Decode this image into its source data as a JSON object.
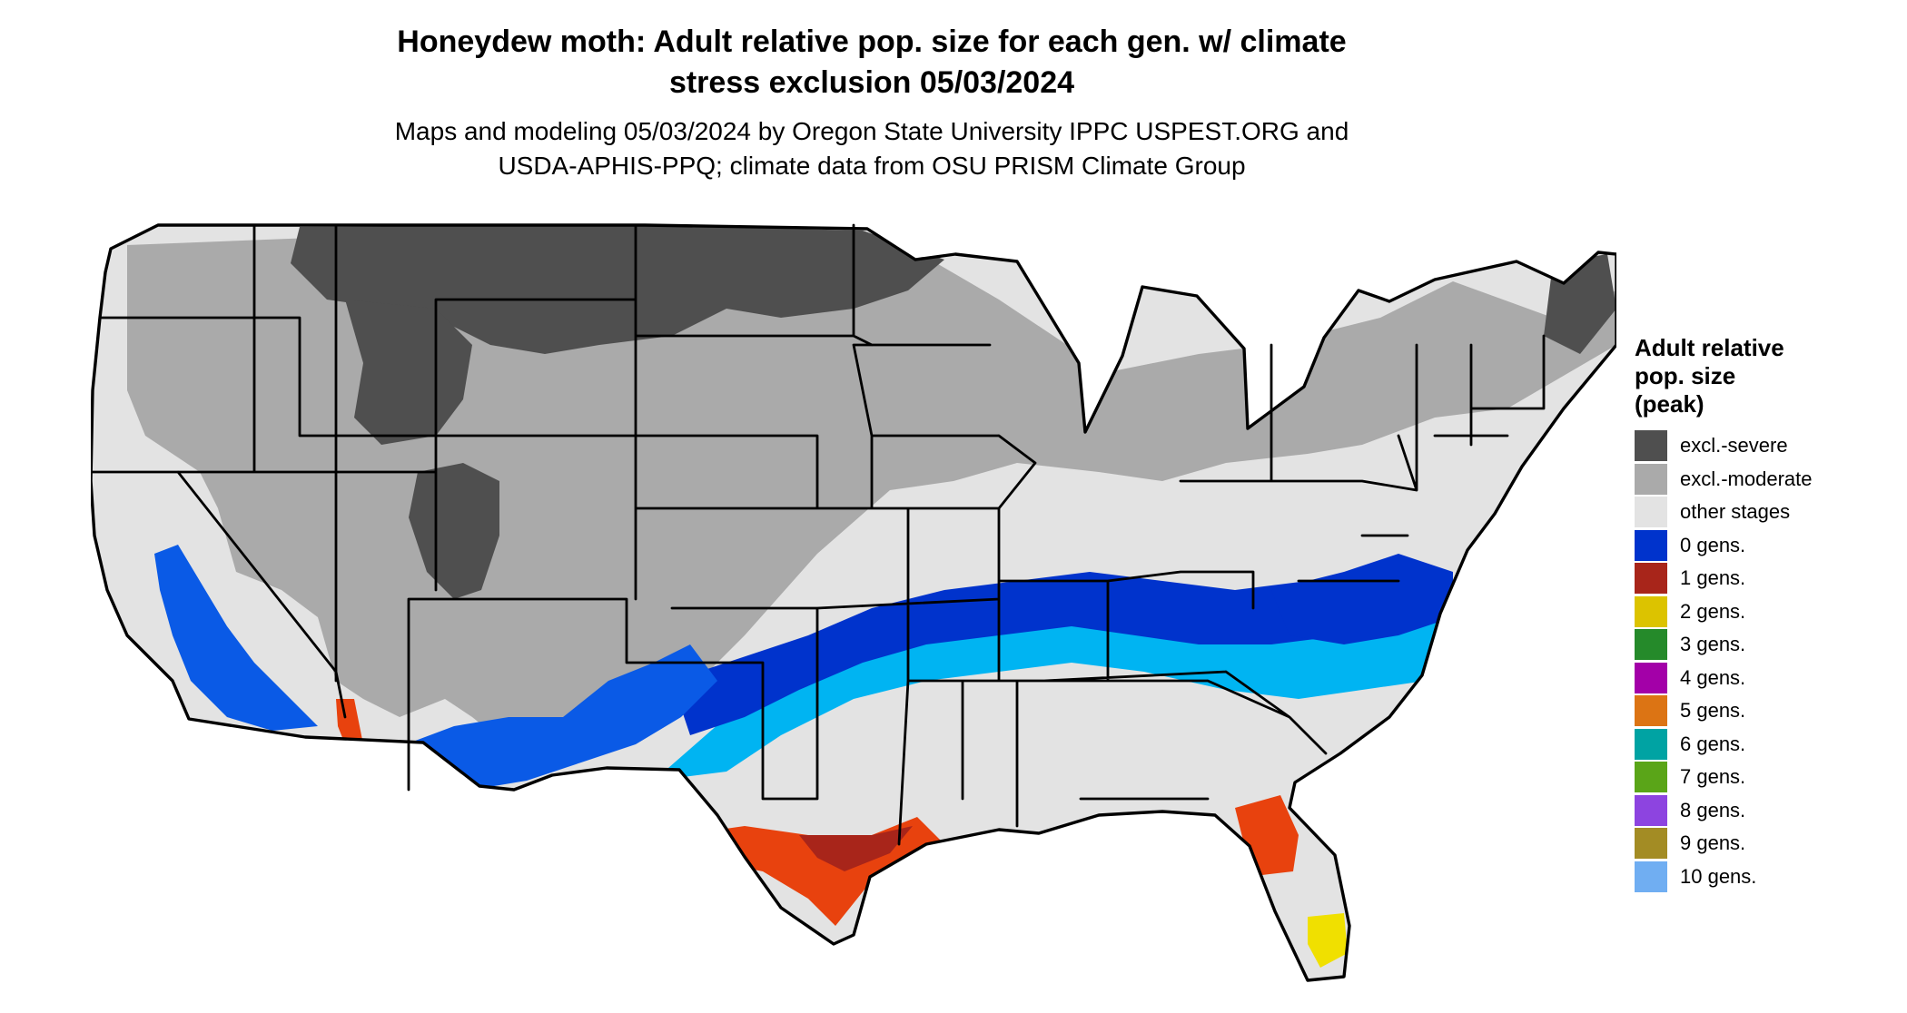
{
  "title_line1": "Honeydew moth: Adult relative pop. size for each gen. w/ climate",
  "title_line2": "stress exclusion 05/03/2024",
  "subtitle_line1": "Maps and modeling 05/03/2024 by Oregon State University IPPC USPEST.ORG and",
  "subtitle_line2": "USDA-APHIS-PPQ; climate data from OSU PRISM Climate Group",
  "legend": {
    "title_line1": "Adult relative",
    "title_line2": "pop. size",
    "title_line3": "(peak)",
    "items": [
      {
        "label": "excl.-severe",
        "color": "#4f4f4f"
      },
      {
        "label": "excl.-moderate",
        "color": "#aaaaaa"
      },
      {
        "label": "other stages",
        "color": "#e3e3e3"
      },
      {
        "label": "0 gens.",
        "color": "#0033cc"
      },
      {
        "label": "1 gens.",
        "color": "#a8251a"
      },
      {
        "label": "2 gens.",
        "color": "#dcc300"
      },
      {
        "label": "3 gens.",
        "color": "#258a2a"
      },
      {
        "label": "4 gens.",
        "color": "#a300a8"
      },
      {
        "label": "5 gens.",
        "color": "#dc7414"
      },
      {
        "label": "6 gens.",
        "color": "#00a3a3"
      },
      {
        "label": "7 gens.",
        "color": "#5aa518"
      },
      {
        "label": "8 gens.",
        "color": "#8d44e0"
      },
      {
        "label": "9 gens.",
        "color": "#a38c24"
      },
      {
        "label": "10 gens.",
        "color": "#70aef2"
      }
    ]
  },
  "map_colors": {
    "land": "#e3e3e3",
    "moderate": "#aaaaaa",
    "severe": "#4f4f4f",
    "gen0_dark": "#0033cc",
    "gen0_mid": "#0a5ae6",
    "gen0_light": "#00b4f2",
    "gen1_dark": "#a8251a",
    "gen1_bright": "#e8420e",
    "gen2": "#f0e000",
    "borders": "#000000"
  }
}
